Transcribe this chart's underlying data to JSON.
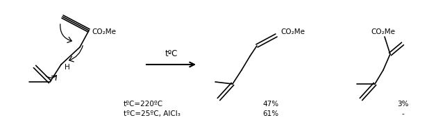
{
  "bg_color": "#ffffff",
  "text_color": "#000000",
  "fig_width": 6.41,
  "fig_height": 1.96,
  "dpi": 100,
  "conditions_line1": "tºC=220ºC",
  "conditions_line2": "tºC=25ºC, AlCl₃",
  "yield1_line1": "47%",
  "yield1_line2": "61%",
  "yield2_line1": "3%",
  "yield2_line2": "-",
  "arrow_label": "tºC",
  "font_size": 7.5
}
